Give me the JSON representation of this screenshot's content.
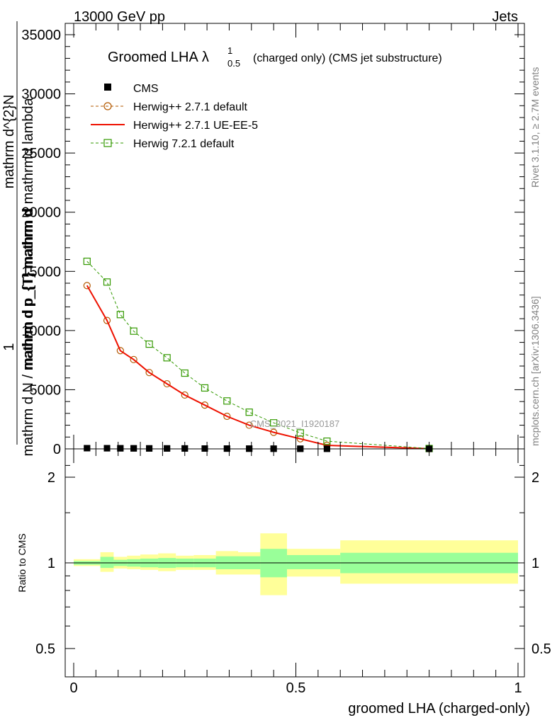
{
  "header": {
    "left": "13000 GeV pp",
    "right": "Jets"
  },
  "title": {
    "main": "Groomed LHA",
    "lambda": "λ",
    "sup": "1",
    "sub": "0.5",
    "rest": "(charged only) (CMS jet substructure)"
  },
  "side_text": {
    "rivet": "Rivet 3.1.10, ≥ 2.7M events",
    "mcplots": "mcplots.cern.ch [arXiv:1306.3436]"
  },
  "watermark": "CMS_2021_I1920187",
  "y_label_top": "1",
  "y_label_frac_num": "mathrm d^{2}N",
  "y_label_frac_den": "mathrm d p_{T} mathrm d mathrmd lambda",
  "y_label_front": "mathrm d N / mathrm d p_{T} mathrm d",
  "colors": {
    "cms": "#000000",
    "herwig271": "#b35900",
    "ueee5": "#ee1100",
    "herwig721": "#339900",
    "band_inner": "#99ff99",
    "band_outer": "#ffff99"
  },
  "chart_data": [
    {
      "type": "line",
      "xlabel": "groomed LHA (charged-only)",
      "ylabel": "",
      "xlim": [
        0,
        1
      ],
      "ylim": [
        0,
        35000
      ],
      "y_ticks": [
        0,
        5000,
        10000,
        15000,
        20000,
        25000,
        30000,
        35000
      ],
      "y_tick_labels": [
        "0",
        "5000",
        "10000",
        "15000",
        "20000",
        "25000",
        "30000",
        "35000"
      ],
      "x_ticks": [
        0,
        0.5,
        1
      ],
      "x_tick_labels": [
        "0",
        "0.5",
        "1"
      ],
      "legend_position": "top-left",
      "series": [
        {
          "name": "CMS",
          "style": "markers",
          "x": [
            0.03,
            0.075,
            0.105,
            0.135,
            0.17,
            0.21,
            0.25,
            0.295,
            0.345,
            0.395,
            0.45,
            0.51,
            0.57,
            0.8
          ],
          "y": [
            60,
            55,
            50,
            45,
            40,
            38,
            35,
            30,
            25,
            20,
            15,
            12,
            10,
            5
          ]
        },
        {
          "name": "Herwig++ 2.7.1 default",
          "style": "dashed-circle",
          "x": [
            0.03,
            0.075,
            0.105,
            0.135,
            0.17,
            0.21,
            0.25,
            0.295,
            0.345,
            0.395,
            0.45,
            0.51,
            0.57,
            0.8
          ],
          "y": [
            13800,
            10850,
            8300,
            7550,
            6450,
            5500,
            4550,
            3700,
            2750,
            2000,
            1400,
            850,
            300,
            10
          ]
        },
        {
          "name": "Herwig++ 2.7.1 UE-EE-5",
          "style": "solid",
          "x": [
            0.03,
            0.075,
            0.105,
            0.135,
            0.17,
            0.21,
            0.25,
            0.295,
            0.345,
            0.395,
            0.45,
            0.51,
            0.57,
            0.8
          ],
          "y": [
            13800,
            10850,
            8300,
            7550,
            6450,
            5500,
            4550,
            3700,
            2750,
            2000,
            1400,
            850,
            300,
            10
          ]
        },
        {
          "name": "Herwig 7.2.1 default",
          "style": "dashed-square",
          "x": [
            0.03,
            0.075,
            0.105,
            0.135,
            0.17,
            0.21,
            0.25,
            0.295,
            0.345,
            0.395,
            0.45,
            0.51,
            0.57,
            0.8
          ],
          "y": [
            15850,
            14100,
            11350,
            9950,
            8850,
            7700,
            6400,
            5150,
            4050,
            3100,
            2200,
            1350,
            650,
            30
          ]
        }
      ]
    },
    {
      "type": "area",
      "ylabel": "Ratio to CMS",
      "xlim": [
        0,
        1
      ],
      "ylim": [
        0.4,
        2.4
      ],
      "y_scale": "log",
      "y_ticks": [
        0.5,
        1,
        2
      ],
      "y_tick_labels": [
        "0.5",
        "1",
        "2"
      ],
      "bins": [
        {
          "x0": 0.0,
          "x1": 0.06,
          "inner": [
            0.985,
            1.015
          ],
          "outer": [
            0.975,
            1.03
          ]
        },
        {
          "x0": 0.06,
          "x1": 0.09,
          "inner": [
            0.96,
            1.05
          ],
          "outer": [
            0.93,
            1.09
          ]
        },
        {
          "x0": 0.09,
          "x1": 0.12,
          "inner": [
            0.975,
            1.025
          ],
          "outer": [
            0.955,
            1.05
          ]
        },
        {
          "x0": 0.12,
          "x1": 0.15,
          "inner": [
            0.97,
            1.03
          ],
          "outer": [
            0.95,
            1.06
          ]
        },
        {
          "x0": 0.15,
          "x1": 0.19,
          "inner": [
            0.965,
            1.035
          ],
          "outer": [
            0.945,
            1.07
          ]
        },
        {
          "x0": 0.19,
          "x1": 0.23,
          "inner": [
            0.96,
            1.04
          ],
          "outer": [
            0.935,
            1.08
          ]
        },
        {
          "x0": 0.23,
          "x1": 0.27,
          "inner": [
            0.965,
            1.035
          ],
          "outer": [
            0.945,
            1.06
          ]
        },
        {
          "x0": 0.27,
          "x1": 0.32,
          "inner": [
            0.965,
            1.035
          ],
          "outer": [
            0.945,
            1.065
          ]
        },
        {
          "x0": 0.32,
          "x1": 0.37,
          "inner": [
            0.95,
            1.055
          ],
          "outer": [
            0.91,
            1.1
          ]
        },
        {
          "x0": 0.37,
          "x1": 0.42,
          "inner": [
            0.95,
            1.055
          ],
          "outer": [
            0.91,
            1.09
          ]
        },
        {
          "x0": 0.42,
          "x1": 0.48,
          "inner": [
            0.89,
            1.12
          ],
          "outer": [
            0.77,
            1.27
          ]
        },
        {
          "x0": 0.48,
          "x1": 0.6,
          "inner": [
            0.95,
            1.065
          ],
          "outer": [
            0.895,
            1.12
          ]
        },
        {
          "x0": 0.6,
          "x1": 1.0,
          "inner": [
            0.92,
            1.085
          ],
          "outer": [
            0.845,
            1.2
          ]
        }
      ]
    }
  ]
}
